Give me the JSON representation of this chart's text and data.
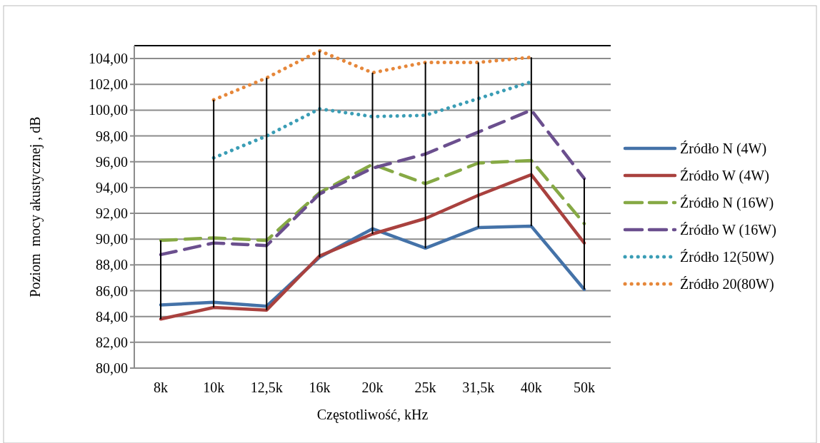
{
  "chart_data": {
    "type": "line",
    "xlabel": "Częstotliwość, kHz",
    "ylabel": "Poziom  mocy akustycznej , dB",
    "categories": [
      "8k",
      "10k",
      "12,5k",
      "16k",
      "20k",
      "25k",
      "31,5k",
      "40k",
      "50k"
    ],
    "ylim": [
      80,
      105
    ],
    "yticks": [
      {
        "value": 80,
        "label": "80,00"
      },
      {
        "value": 82,
        "label": "82,00"
      },
      {
        "value": 84,
        "label": "84,00"
      },
      {
        "value": 86,
        "label": "86,00"
      },
      {
        "value": 88,
        "label": "88,00"
      },
      {
        "value": 90,
        "label": "90,00"
      },
      {
        "value": 92,
        "label": "92,00"
      },
      {
        "value": 94,
        "label": "94,00"
      },
      {
        "value": 96,
        "label": "96,00"
      },
      {
        "value": 98,
        "label": "98,00"
      },
      {
        "value": 100,
        "label": "100,00"
      },
      {
        "value": 102,
        "label": "102,00"
      },
      {
        "value": 104,
        "label": "104,00"
      }
    ],
    "grid": "y",
    "legend": "right",
    "series": [
      {
        "name": "Źródło N (4W)",
        "color": "#4472a8",
        "line_style": "solid",
        "values": [
          84.9,
          85.1,
          84.8,
          88.6,
          90.8,
          89.3,
          90.9,
          91.0,
          86.1
        ]
      },
      {
        "name": "Źródło W (4W)",
        "color": "#a9413e",
        "line_style": "solid",
        "values": [
          83.8,
          84.7,
          84.5,
          88.7,
          90.4,
          91.6,
          93.4,
          95.0,
          89.7
        ]
      },
      {
        "name": "Źródło N (16W)",
        "color": "#86a945",
        "line_style": "dashed",
        "values": [
          89.9,
          90.1,
          89.9,
          93.6,
          95.8,
          94.3,
          95.9,
          96.1,
          91.2
        ]
      },
      {
        "name": "Źródło W (16W)",
        "color": "#6b4f8e",
        "line_style": "dashed",
        "values": [
          88.8,
          89.7,
          89.5,
          93.5,
          95.5,
          96.6,
          98.3,
          100.0,
          94.7
        ]
      },
      {
        "name": "Źródło 12(50W)",
        "color": "#3a9db5",
        "line_style": "dotted",
        "values": [
          null,
          96.3,
          98.0,
          100.1,
          99.5,
          99.6,
          100.9,
          102.2,
          null
        ]
      },
      {
        "name": "Źródło 20(80W)",
        "color": "#e6873a",
        "line_style": "dotted",
        "values": [
          null,
          100.8,
          102.5,
          104.6,
          102.9,
          103.7,
          103.7,
          104.1,
          null
        ]
      },
      {
        "type": "bar",
        "color": "#000000",
        "base": [
          83.8,
          84.7,
          84.5,
          88.6,
          90.4,
          89.3,
          90.9,
          91.0,
          86.1
        ],
        "values": [
          6.1,
          16.1,
          18.0,
          16.0,
          12.5,
          14.4,
          12.8,
          13.1,
          8.6
        ]
      }
    ]
  }
}
